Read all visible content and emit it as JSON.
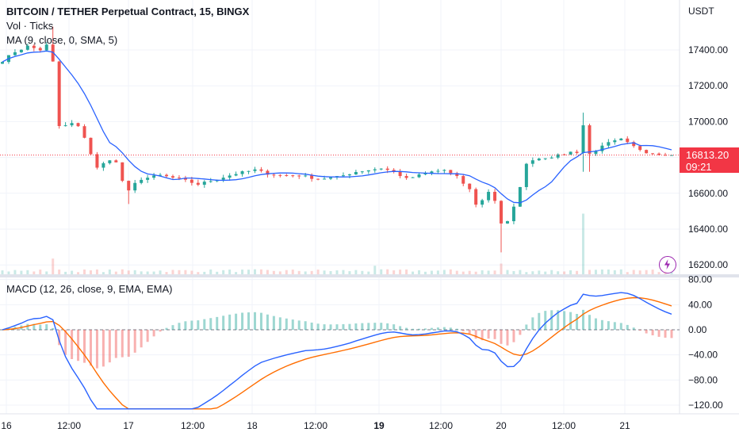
{
  "header": {
    "symbol_title": "BITCOIN / TETHER Perpetual Contract, 15, BINGX",
    "volume_label": "Vol · Ticks",
    "ma_label": "MA (9, close, 0, SMA, 5)",
    "macd_label": "MACD (12, 26, close, 9, EMA, EMA)",
    "currency": "USDT"
  },
  "last_price": {
    "value": "16813.20",
    "countdown": "09:21"
  },
  "colors": {
    "up": "#26a69a",
    "down": "#ef5350",
    "ma_line": "#2962ff",
    "macd_line": "#2962ff",
    "signal_line": "#ff6d00",
    "price_tag": "#f23645",
    "alert_icon": "#9c27b0"
  },
  "icons": {
    "alert": "lightning-alert-icon"
  },
  "chart_data": [
    {
      "type": "candlestick",
      "title": "BITCOIN / TETHER Perpetual Contract, 15, BINGX",
      "ylabel": "USDT",
      "y_ticks": [
        "17400.00",
        "17200.00",
        "17000.00",
        "16800.00",
        "16600.00",
        "16400.00",
        "16200.00"
      ],
      "ylim": [
        16150,
        17600
      ],
      "x_ticks": [
        "16",
        "12:00",
        "17",
        "12:00",
        "18",
        "12:00",
        "19",
        "12:00",
        "20",
        "12:00",
        "21"
      ],
      "bold_x_ticks": [
        "19"
      ],
      "price_anchors": [
        [
          0,
          17340
        ],
        [
          2,
          17390
        ],
        [
          4,
          17420
        ],
        [
          6,
          17400
        ],
        [
          7.5,
          17440
        ],
        [
          7.9,
          17420
        ],
        [
          8.4,
          16980
        ],
        [
          9.5,
          16970
        ],
        [
          11,
          16990
        ],
        [
          12.5,
          16960
        ],
        [
          14,
          16820
        ],
        [
          15,
          16740
        ],
        [
          17,
          16790
        ],
        [
          18.5,
          16760
        ],
        [
          19.5,
          16580
        ],
        [
          20.5,
          16640
        ],
        [
          22,
          16680
        ],
        [
          25,
          16700
        ],
        [
          28,
          16680
        ],
        [
          31,
          16650
        ],
        [
          34,
          16680
        ],
        [
          37,
          16710
        ],
        [
          40,
          16730
        ],
        [
          42,
          16710
        ],
        [
          44,
          16700
        ],
        [
          47,
          16700
        ],
        [
          50,
          16680
        ],
        [
          53,
          16690
        ],
        [
          56,
          16720
        ],
        [
          58,
          16730
        ],
        [
          60,
          16740
        ],
        [
          62,
          16720
        ],
        [
          64,
          16680
        ],
        [
          66,
          16700
        ],
        [
          68,
          16720
        ],
        [
          70,
          16730
        ],
        [
          72,
          16690
        ],
        [
          74,
          16620
        ],
        [
          75,
          16540
        ],
        [
          76,
          16560
        ],
        [
          77,
          16610
        ],
        [
          78,
          16560
        ],
        [
          78.8,
          16450
        ],
        [
          79.5,
          16390
        ],
        [
          80,
          16440
        ],
        [
          81,
          16520
        ],
        [
          82,
          16640
        ],
        [
          83,
          16760
        ],
        [
          84,
          16790
        ],
        [
          86,
          16800
        ],
        [
          88,
          16810
        ],
        [
          90,
          16830
        ],
        [
          91.5,
          16830
        ],
        [
          92,
          16980
        ],
        [
          92.6,
          16810
        ],
        [
          94,
          16840
        ],
        [
          96,
          16880
        ],
        [
          98,
          16900
        ],
        [
          99,
          16880
        ],
        [
          100,
          16860
        ],
        [
          102,
          16830
        ],
        [
          104,
          16820
        ],
        [
          106,
          16820
        ],
        [
          106.5,
          16813.2
        ]
      ],
      "spikes": [
        {
          "x": 8,
          "high": 17530
        },
        {
          "x": 19.6,
          "low": 16540
        },
        {
          "x": 79,
          "low": 16270
        },
        {
          "x": 92.2,
          "high": 17050
        },
        {
          "x": 92.4,
          "low": 16720
        }
      ],
      "last_price": 16813.2,
      "x_range": [
        -0.5,
        106.5
      ]
    },
    {
      "type": "bar",
      "title": "Vol · Ticks",
      "volume_spikes": [
        {
          "x": 8,
          "value": 0.22
        },
        {
          "x": 59,
          "value": 0.12
        },
        {
          "x": 79,
          "value": 0.15
        },
        {
          "x": 92.2,
          "value": 0.85
        }
      ]
    },
    {
      "type": "line",
      "title": "MACD (12, 26, close, 9, EMA, EMA)",
      "y_ticks": [
        "80.00",
        "40.00",
        "0.00",
        "−40.00",
        "−80.00",
        "−120.00"
      ],
      "ylim": [
        -128,
        84
      ],
      "series": [
        {
          "name": "MACD",
          "color": "#2962ff"
        },
        {
          "name": "Signal",
          "color": "#ff6d00"
        }
      ]
    }
  ]
}
